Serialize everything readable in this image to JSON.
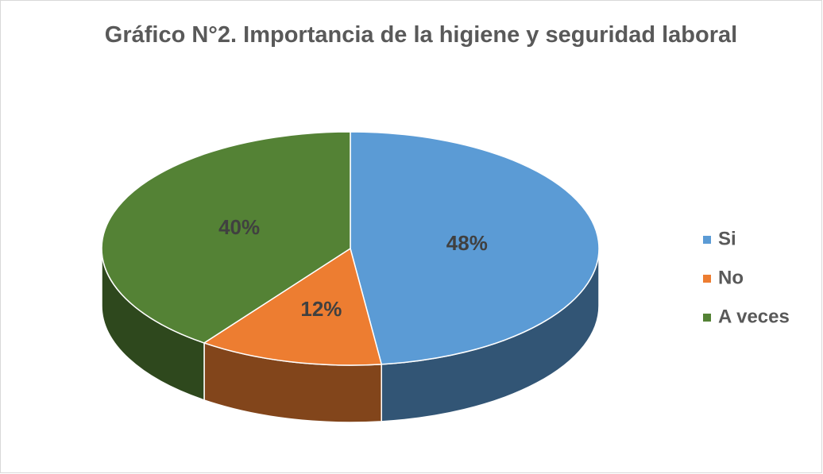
{
  "chart_data": {
    "type": "pie",
    "title": "Gráfico N°2. Importancia de la higiene y seguridad laboral",
    "categories": [
      "Si",
      "No",
      "A veces"
    ],
    "values": [
      48,
      12,
      40
    ],
    "value_labels": [
      "48%",
      "12%",
      "40%"
    ],
    "colors": [
      "#5b9bd5",
      "#ed7d31",
      "#548235"
    ],
    "legend": "right"
  }
}
